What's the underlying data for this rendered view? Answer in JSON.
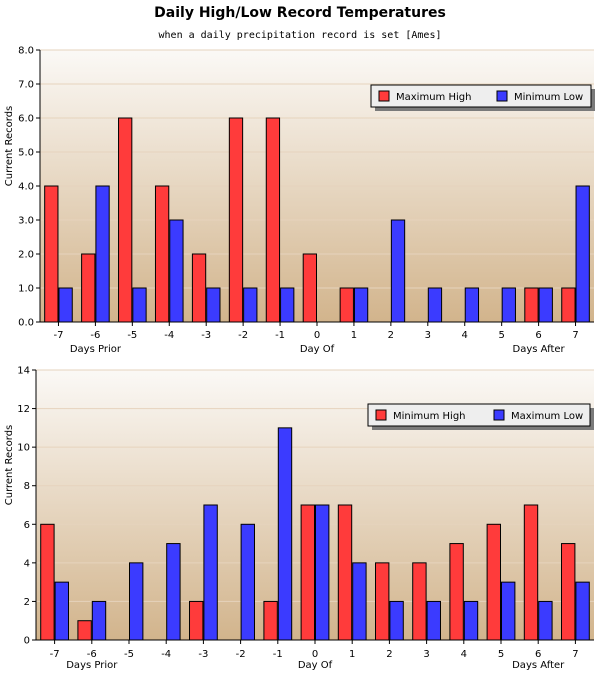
{
  "title": "Daily High/Low Record Temperatures",
  "subtitle": "when a daily precipitation record is set [Ames]",
  "colors": {
    "red": "#ff3b3b",
    "blue": "#3b3bff",
    "bg_top": "#fbf9f6",
    "bg_bottom": "#d2b48c"
  },
  "chart_data": [
    {
      "type": "bar",
      "ylabel": "Current Records",
      "ylim": [
        0,
        8
      ],
      "yticks": [
        "0.0",
        "1.0",
        "2.0",
        "3.0",
        "4.0",
        "5.0",
        "6.0",
        "7.0",
        "8.0"
      ],
      "categories": [
        "-7",
        "-6",
        "-5",
        "-4",
        "-3",
        "-2",
        "-1",
        "0",
        "1",
        "2",
        "3",
        "4",
        "5",
        "6",
        "7"
      ],
      "group_labels": [
        "Days Prior",
        "Day Of",
        "Days After"
      ],
      "legend_position": "top-right",
      "series": [
        {
          "name": "Maximum High",
          "color": "#ff3b3b",
          "values": [
            4,
            2,
            6,
            4,
            2,
            6,
            6,
            2,
            1,
            0,
            0,
            0,
            0,
            1,
            1
          ]
        },
        {
          "name": "Minimum Low",
          "color": "#3b3bff",
          "values": [
            1,
            4,
            1,
            3,
            1,
            1,
            1,
            0,
            1,
            3,
            1,
            1,
            1,
            1,
            4
          ]
        }
      ]
    },
    {
      "type": "bar",
      "ylabel": "Current Records",
      "ylim": [
        0,
        14
      ],
      "yticks": [
        "0",
        "2",
        "4",
        "6",
        "8",
        "10",
        "12",
        "14"
      ],
      "categories": [
        "-7",
        "-6",
        "-5",
        "-4",
        "-3",
        "-2",
        "-1",
        "0",
        "1",
        "2",
        "3",
        "4",
        "5",
        "6",
        "7"
      ],
      "group_labels": [
        "Days Prior",
        "Day Of",
        "Days After"
      ],
      "legend_position": "top-right",
      "series": [
        {
          "name": "Minimum High",
          "color": "#ff3b3b",
          "values": [
            6,
            1,
            0,
            0,
            2,
            0,
            2,
            7,
            7,
            4,
            4,
            5,
            6,
            7,
            5
          ]
        },
        {
          "name": "Maximum Low",
          "color": "#3b3bff",
          "values": [
            3,
            2,
            4,
            5,
            7,
            6,
            11,
            7,
            4,
            2,
            2,
            2,
            3,
            2,
            3
          ]
        }
      ]
    }
  ]
}
